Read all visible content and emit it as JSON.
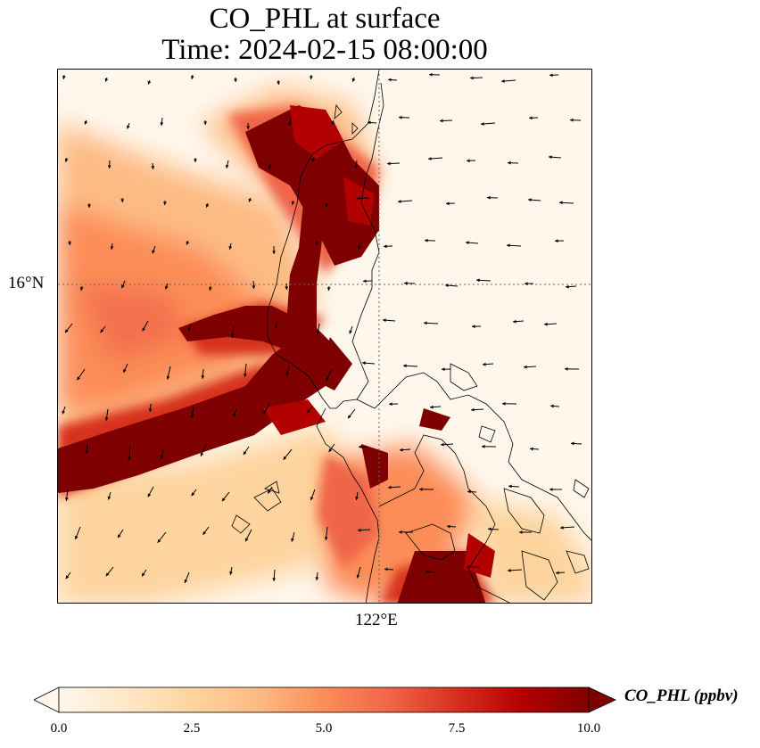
{
  "figure": {
    "title_line1": "CO_PHL at surface",
    "title_line2": "Time: 2024-02-15 08:00:00"
  },
  "axes": {
    "lat_tick_label": "16°N",
    "lon_tick_label": "122°E"
  },
  "colorbar": {
    "label": "CO_PHL (ppbv)",
    "ticks": [
      "0.0",
      "2.5",
      "5.0",
      "7.5",
      "10.0"
    ],
    "vmin": 0,
    "vmax": 10,
    "colormap": "OrRd",
    "colors": [
      "#fff7ec",
      "#fee8c8",
      "#fdd49e",
      "#fdbb84",
      "#fc8d59",
      "#ef6548",
      "#d7301f",
      "#b30000",
      "#7f0000"
    ],
    "extend": "both"
  },
  "chart_data": {
    "type": "heatmap",
    "variable": "CO_PHL",
    "units": "ppbv",
    "gridlines": "dotted",
    "overlay": "wind vectors and coastlines"
  }
}
